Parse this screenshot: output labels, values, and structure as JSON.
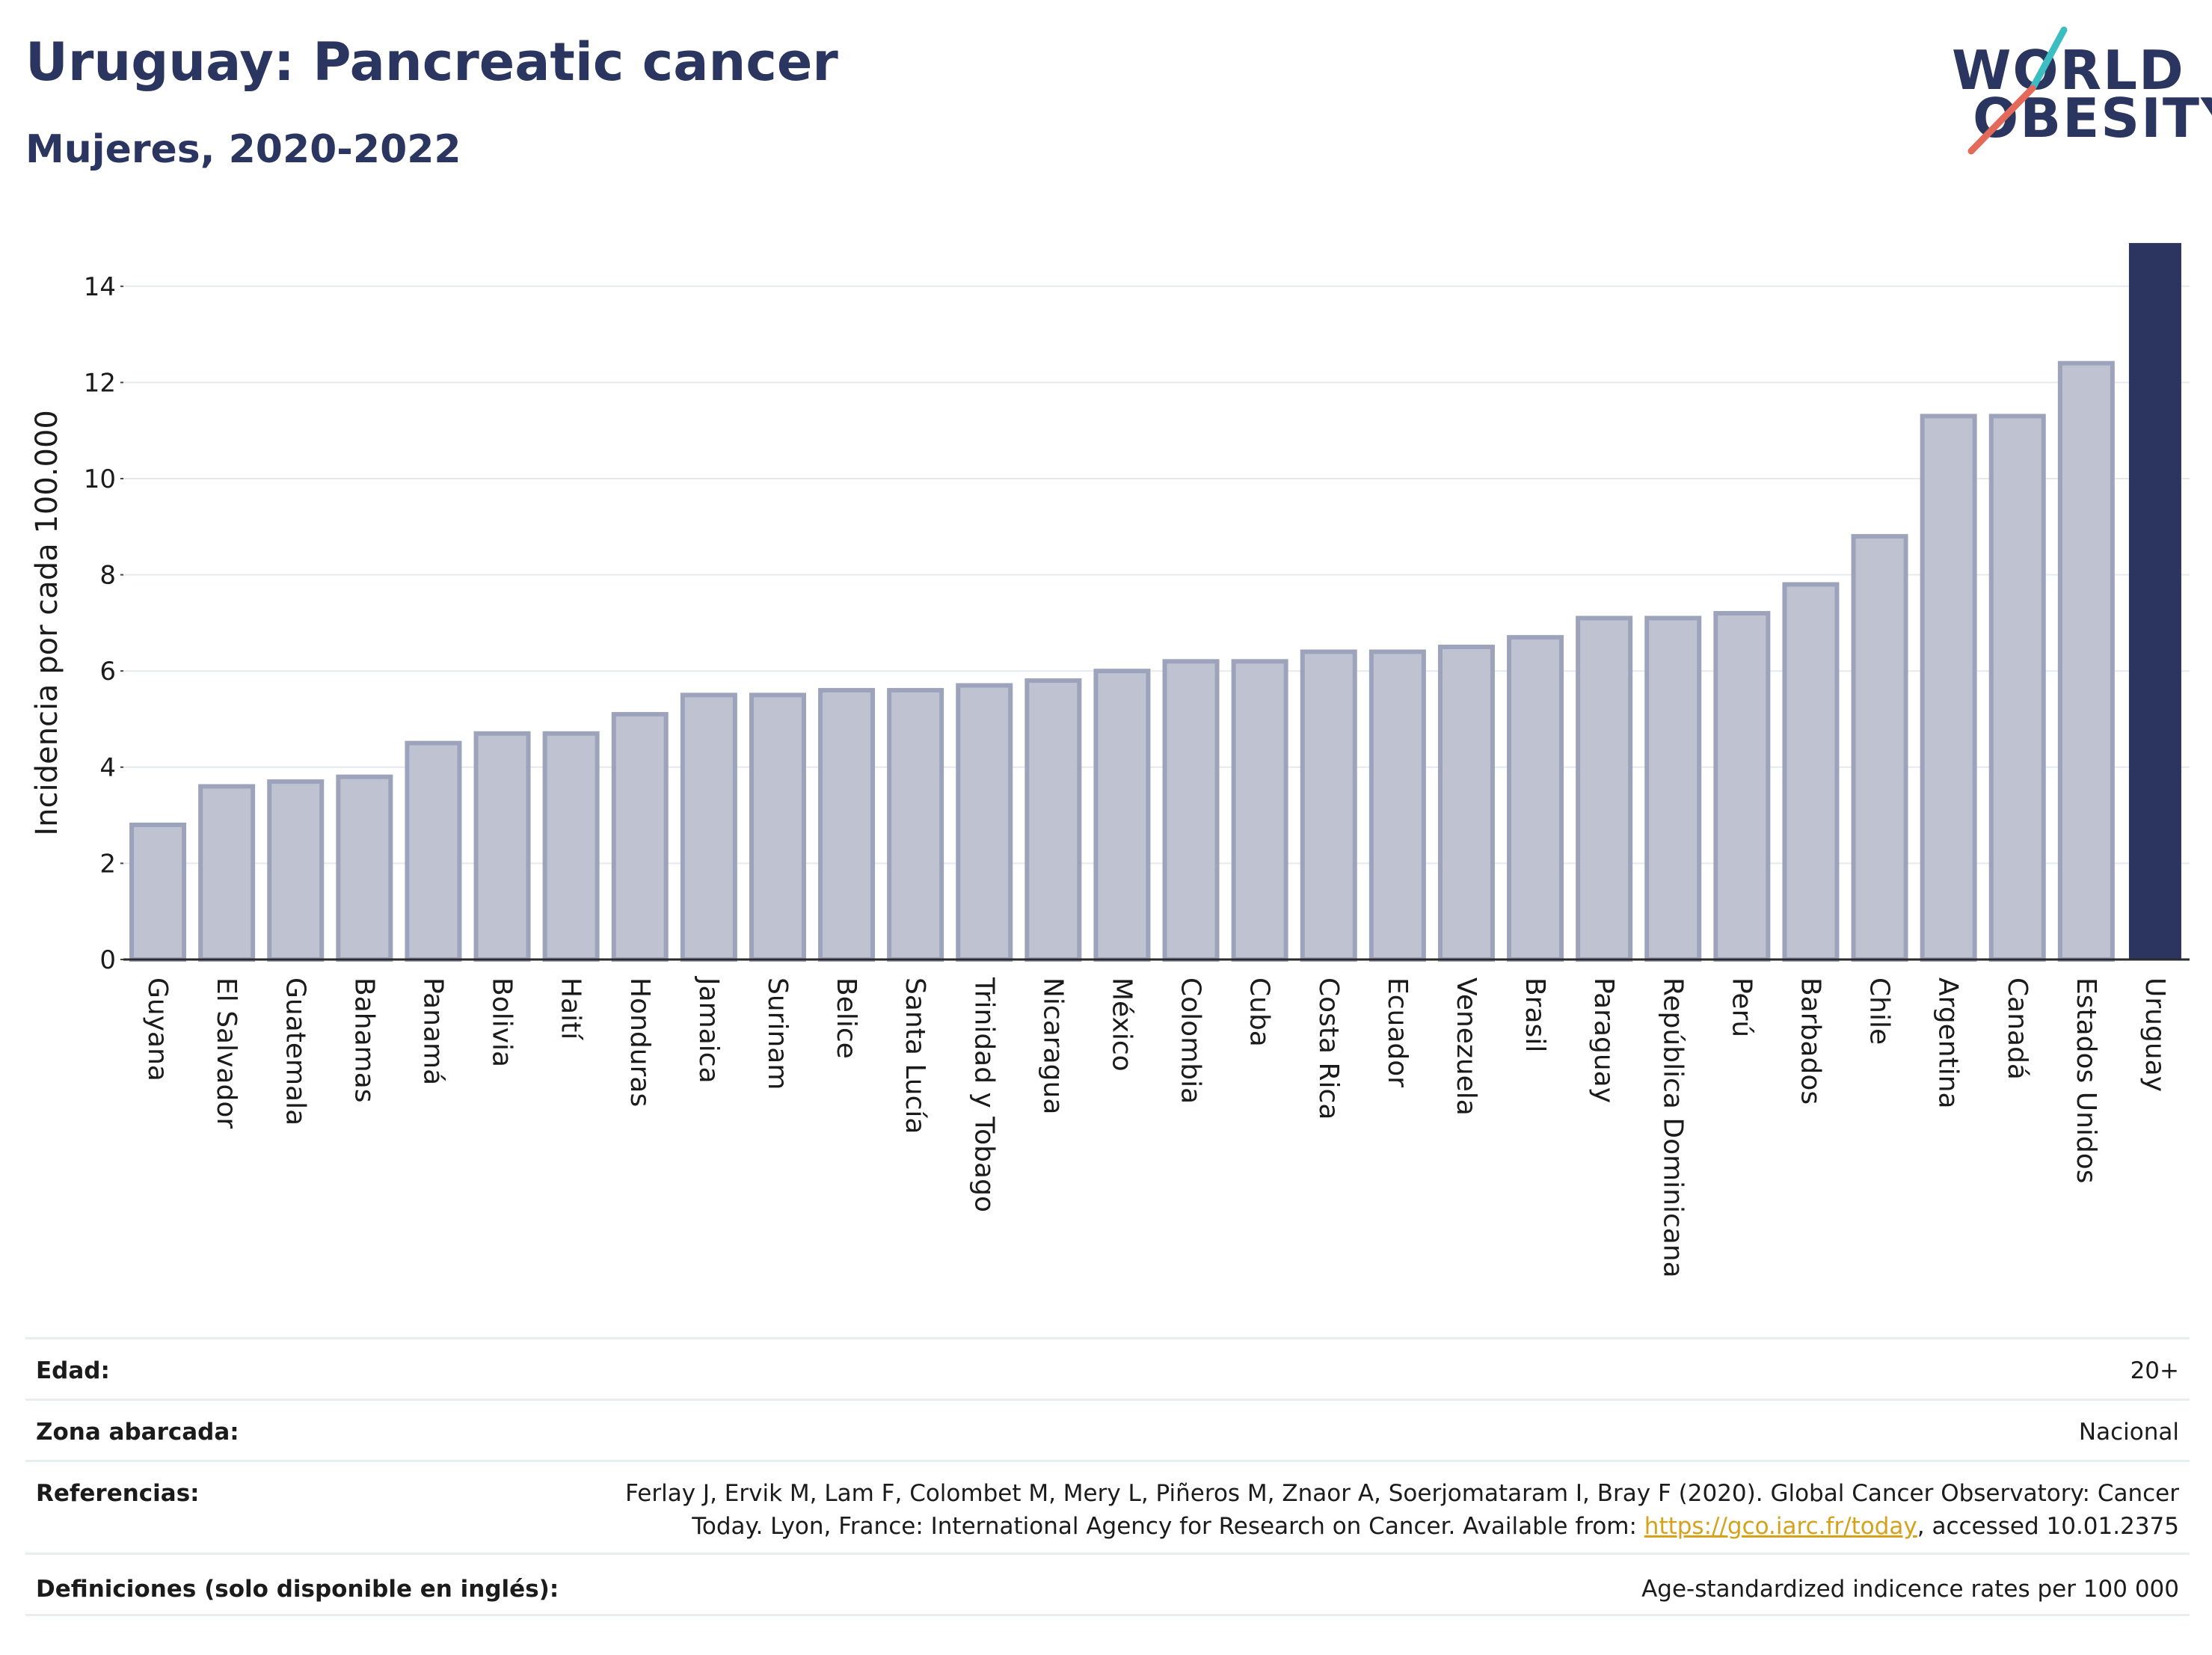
{
  "header": {
    "title": "Uruguay: Pancreatic cancer",
    "subtitle": "Mujeres, 2020-2022"
  },
  "logo": {
    "line1": "WORLD",
    "line2": "OBESITY"
  },
  "colors": {
    "bar": "#bfc3d1",
    "bar_border": "#9da3bb",
    "highlight": "#2b3560",
    "text": "#2a3560",
    "logo_accent_teal": "#3bbdc1",
    "logo_accent_coral": "#e36a5b"
  },
  "chart_data": {
    "type": "bar",
    "categories": [
      "Guyana",
      "El Salvador",
      "Guatemala",
      "Bahamas",
      "Panamá",
      "Bolivia",
      "Haití",
      "Honduras",
      "Jamaica",
      "Surinam",
      "Belice",
      "Santa Lucía",
      "Trinidad y Tobago",
      "Nicaragua",
      "México",
      "Colombia",
      "Cuba",
      "Costa Rica",
      "Ecuador",
      "Venezuela",
      "Brasil",
      "Paraguay",
      "República Dominicana",
      "Perú",
      "Barbados",
      "Chile",
      "Argentina",
      "Canadá",
      "Estados Unidos",
      "Uruguay"
    ],
    "values": [
      2.8,
      3.6,
      3.7,
      3.8,
      4.5,
      4.7,
      4.7,
      5.1,
      5.5,
      5.5,
      5.6,
      5.6,
      5.7,
      5.8,
      6.0,
      6.2,
      6.2,
      6.4,
      6.4,
      6.5,
      6.7,
      7.1,
      7.1,
      7.2,
      7.8,
      8.8,
      11.3,
      11.3,
      12.4,
      14.9
    ],
    "highlight": "Uruguay",
    "ylabel": "Incidencia por cada 100.000",
    "xlabel": "",
    "ylim": [
      0,
      15
    ],
    "yticks": [
      0,
      2,
      4,
      6,
      8,
      10,
      12,
      14
    ],
    "grid": true
  },
  "meta": {
    "edad_label": "Edad:",
    "edad_value": "20+",
    "zona_label": "Zona abarcada:",
    "zona_value": "Nacional",
    "ref_label": "Referencias:",
    "ref_line1": "Ferlay J, Ervik M, Lam F, Colombet M, Mery L, Piñeros M, Znaor A, Soerjomataram I, Bray F (2020). Global Cancer Observatory: Cancer",
    "ref_line2_pre": "Today. Lyon, France: International Agency for Research on Cancer. Available from: ",
    "ref_link": "https://gco.iarc.fr/today",
    "ref_line2_post": ", accessed 10.01.2375",
    "def_label": "Definiciones (solo disponible en inglés):",
    "def_value": "Age-standardized indicence rates per 100 000"
  }
}
